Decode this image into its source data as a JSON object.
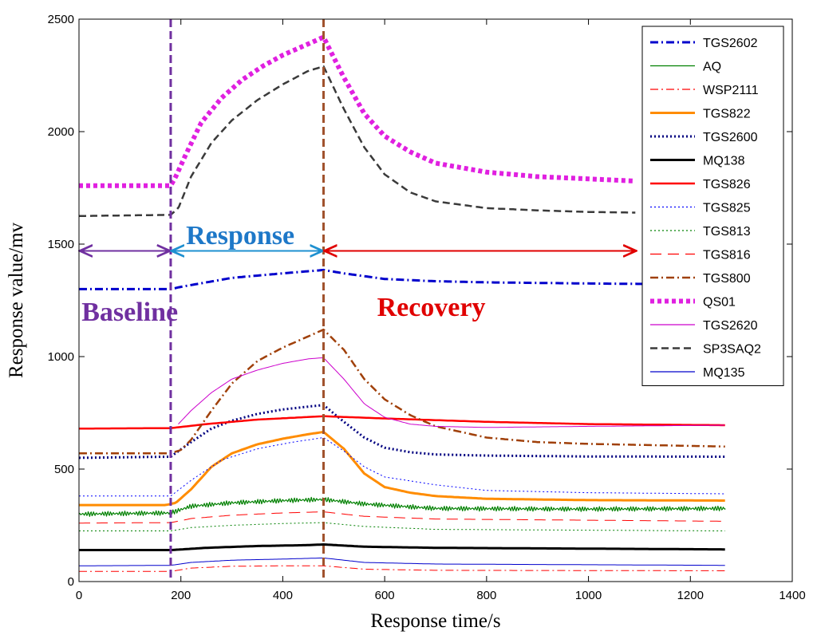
{
  "chart_data": {
    "type": "line",
    "title": "",
    "xlabel": "Response time/s",
    "ylabel": "Response value/mv",
    "xlim": [
      0,
      1400
    ],
    "ylim": [
      0,
      2500
    ],
    "xticks": [
      0,
      200,
      400,
      600,
      800,
      1000,
      1200,
      1400
    ],
    "yticks": [
      0,
      500,
      1000,
      1500,
      2000,
      2500
    ],
    "grid": false,
    "legend_position": "top-right",
    "series": [
      {
        "name": "TGS2602",
        "color": "#0000cc",
        "style": "dashdot",
        "width": 3,
        "t_end": 1270,
        "points": [
          [
            0,
            1300
          ],
          [
            180,
            1300
          ],
          [
            200,
            1310
          ],
          [
            250,
            1330
          ],
          [
            300,
            1350
          ],
          [
            400,
            1370
          ],
          [
            480,
            1385
          ],
          [
            520,
            1370
          ],
          [
            600,
            1345
          ],
          [
            700,
            1335
          ],
          [
            800,
            1330
          ],
          [
            1000,
            1325
          ],
          [
            1270,
            1320
          ]
        ]
      },
      {
        "name": "AQ",
        "color": "#008000",
        "style": "solid",
        "width": 1.2,
        "t_end": 1270,
        "noise": 22,
        "noise_step": 1.5,
        "points": [
          [
            0,
            300
          ],
          [
            180,
            305
          ],
          [
            220,
            335
          ],
          [
            300,
            350
          ],
          [
            400,
            360
          ],
          [
            480,
            365
          ],
          [
            560,
            345
          ],
          [
            700,
            325
          ],
          [
            1000,
            322
          ],
          [
            1270,
            325
          ]
        ]
      },
      {
        "name": "WSP2111",
        "color": "#ff0000",
        "style": "dashdot",
        "width": 1,
        "t_end": 1270,
        "points": [
          [
            0,
            45
          ],
          [
            180,
            45
          ],
          [
            220,
            60
          ],
          [
            300,
            68
          ],
          [
            400,
            70
          ],
          [
            480,
            70
          ],
          [
            560,
            55
          ],
          [
            700,
            50
          ],
          [
            1270,
            48
          ]
        ]
      },
      {
        "name": "TGS822",
        "color": "#ff8c00",
        "style": "solid",
        "width": 3,
        "t_end": 1270,
        "points": [
          [
            0,
            340
          ],
          [
            170,
            340
          ],
          [
            190,
            350
          ],
          [
            220,
            410
          ],
          [
            260,
            510
          ],
          [
            300,
            570
          ],
          [
            350,
            610
          ],
          [
            400,
            635
          ],
          [
            450,
            655
          ],
          [
            480,
            665
          ],
          [
            520,
            590
          ],
          [
            560,
            480
          ],
          [
            600,
            420
          ],
          [
            650,
            395
          ],
          [
            700,
            380
          ],
          [
            800,
            368
          ],
          [
            1000,
            362
          ],
          [
            1270,
            360
          ]
        ]
      },
      {
        "name": "TGS2600",
        "color": "#000080",
        "style": "dotted",
        "width": 3,
        "t_end": 1270,
        "points": [
          [
            0,
            550
          ],
          [
            180,
            555
          ],
          [
            220,
            620
          ],
          [
            260,
            680
          ],
          [
            300,
            715
          ],
          [
            350,
            745
          ],
          [
            400,
            765
          ],
          [
            480,
            785
          ],
          [
            520,
            710
          ],
          [
            560,
            640
          ],
          [
            600,
            595
          ],
          [
            650,
            575
          ],
          [
            700,
            565
          ],
          [
            800,
            560
          ],
          [
            1000,
            556
          ],
          [
            1270,
            555
          ]
        ]
      },
      {
        "name": "MQ138",
        "color": "#000000",
        "style": "solid",
        "width": 3,
        "t_end": 1270,
        "points": [
          [
            0,
            140
          ],
          [
            180,
            140
          ],
          [
            250,
            150
          ],
          [
            350,
            158
          ],
          [
            450,
            162
          ],
          [
            480,
            165
          ],
          [
            560,
            155
          ],
          [
            700,
            150
          ],
          [
            1270,
            143
          ]
        ]
      },
      {
        "name": "TGS826",
        "color": "#ff0000",
        "style": "solid",
        "width": 2.5,
        "t_end": 1270,
        "points": [
          [
            0,
            680
          ],
          [
            180,
            682
          ],
          [
            250,
            700
          ],
          [
            350,
            720
          ],
          [
            480,
            735
          ],
          [
            600,
            725
          ],
          [
            800,
            710
          ],
          [
            1000,
            700
          ],
          [
            1270,
            695
          ]
        ]
      },
      {
        "name": "TGS825",
        "color": "#0000ff",
        "style": "dotted",
        "width": 1,
        "t_end": 1270,
        "points": [
          [
            0,
            380
          ],
          [
            180,
            380
          ],
          [
            220,
            450
          ],
          [
            280,
            540
          ],
          [
            350,
            590
          ],
          [
            420,
            620
          ],
          [
            480,
            640
          ],
          [
            520,
            580
          ],
          [
            560,
            510
          ],
          [
            600,
            465
          ],
          [
            700,
            430
          ],
          [
            800,
            405
          ],
          [
            1000,
            395
          ],
          [
            1270,
            390
          ]
        ]
      },
      {
        "name": "TGS813",
        "color": "#008000",
        "style": "dotted",
        "width": 1,
        "t_end": 1270,
        "points": [
          [
            0,
            225
          ],
          [
            180,
            225
          ],
          [
            220,
            240
          ],
          [
            300,
            250
          ],
          [
            400,
            258
          ],
          [
            480,
            262
          ],
          [
            560,
            245
          ],
          [
            700,
            232
          ],
          [
            1270,
            225
          ]
        ]
      },
      {
        "name": "TGS816",
        "color": "#ff0000",
        "style": "longdash",
        "width": 1,
        "t_end": 1270,
        "points": [
          [
            0,
            260
          ],
          [
            180,
            262
          ],
          [
            220,
            280
          ],
          [
            300,
            295
          ],
          [
            400,
            305
          ],
          [
            480,
            310
          ],
          [
            560,
            290
          ],
          [
            700,
            278
          ],
          [
            1270,
            268
          ]
        ]
      },
      {
        "name": "TGS800",
        "color": "#a0400a",
        "style": "dashdot",
        "width": 2.5,
        "t_end": 1270,
        "points": [
          [
            0,
            570
          ],
          [
            180,
            570
          ],
          [
            200,
            585
          ],
          [
            220,
            630
          ],
          [
            260,
            760
          ],
          [
            300,
            880
          ],
          [
            350,
            980
          ],
          [
            400,
            1040
          ],
          [
            450,
            1090
          ],
          [
            480,
            1120
          ],
          [
            520,
            1030
          ],
          [
            560,
            900
          ],
          [
            600,
            810
          ],
          [
            650,
            740
          ],
          [
            700,
            690
          ],
          [
            800,
            640
          ],
          [
            900,
            620
          ],
          [
            1000,
            612
          ],
          [
            1270,
            600
          ]
        ]
      },
      {
        "name": "QS01",
        "color": "#e020e0",
        "style": "dotted",
        "width": 6,
        "t_end": 1095,
        "points": [
          [
            0,
            1760
          ],
          [
            180,
            1760
          ],
          [
            190,
            1800
          ],
          [
            210,
            1900
          ],
          [
            240,
            2040
          ],
          [
            280,
            2150
          ],
          [
            320,
            2230
          ],
          [
            360,
            2290
          ],
          [
            400,
            2340
          ],
          [
            450,
            2390
          ],
          [
            480,
            2420
          ],
          [
            520,
            2240
          ],
          [
            560,
            2080
          ],
          [
            600,
            1980
          ],
          [
            650,
            1910
          ],
          [
            700,
            1860
          ],
          [
            800,
            1820
          ],
          [
            900,
            1800
          ],
          [
            1000,
            1790
          ],
          [
            1095,
            1780
          ]
        ]
      },
      {
        "name": "TGS2620",
        "color": "#cc00cc",
        "style": "solid",
        "width": 1,
        "t_end": 1270,
        "t_start": 195,
        "points": [
          [
            195,
            700
          ],
          [
            220,
            760
          ],
          [
            260,
            840
          ],
          [
            300,
            900
          ],
          [
            350,
            940
          ],
          [
            400,
            970
          ],
          [
            450,
            990
          ],
          [
            480,
            995
          ],
          [
            520,
            900
          ],
          [
            560,
            790
          ],
          [
            600,
            730
          ],
          [
            650,
            700
          ],
          [
            700,
            690
          ],
          [
            800,
            685
          ],
          [
            1000,
            690
          ],
          [
            1270,
            695
          ]
        ]
      },
      {
        "name": "SP3SAQ2",
        "color": "#3a3a3a",
        "style": "dashed",
        "width": 2.5,
        "t_end": 1095,
        "points": [
          [
            0,
            1625
          ],
          [
            180,
            1630
          ],
          [
            195,
            1660
          ],
          [
            220,
            1800
          ],
          [
            260,
            1950
          ],
          [
            300,
            2050
          ],
          [
            350,
            2140
          ],
          [
            400,
            2210
          ],
          [
            450,
            2270
          ],
          [
            480,
            2290
          ],
          [
            520,
            2100
          ],
          [
            560,
            1930
          ],
          [
            600,
            1810
          ],
          [
            650,
            1730
          ],
          [
            700,
            1690
          ],
          [
            800,
            1660
          ],
          [
            900,
            1650
          ],
          [
            1000,
            1643
          ],
          [
            1095,
            1640
          ]
        ]
      },
      {
        "name": "MQ135",
        "color": "#0000cc",
        "style": "solid",
        "width": 1,
        "t_end": 1270,
        "points": [
          [
            0,
            70
          ],
          [
            180,
            72
          ],
          [
            220,
            85
          ],
          [
            300,
            95
          ],
          [
            400,
            100
          ],
          [
            480,
            105
          ],
          [
            560,
            85
          ],
          [
            700,
            78
          ],
          [
            1270,
            72
          ]
        ]
      }
    ],
    "phase_lines": [
      {
        "x": 180,
        "color": "#7030a0"
      },
      {
        "x": 480,
        "color": "#a0522d"
      }
    ],
    "phase_arrows": [
      {
        "from": 0,
        "to": 180,
        "y": 1470,
        "color": "#7030a0"
      },
      {
        "from": 180,
        "to": 480,
        "y": 1470,
        "color": "#1e90d0"
      },
      {
        "from": 480,
        "to": 1095,
        "y": 1470,
        "color": "#e00000"
      }
    ],
    "annotations": [
      {
        "text": "Baseline",
        "x": 5,
        "y": 1160,
        "color": "#7030a0"
      },
      {
        "text": "Response",
        "x": 210,
        "y": 1500,
        "color": "#1e78c8"
      },
      {
        "text": "Recovery",
        "x": 585,
        "y": 1180,
        "color": "#e00000"
      }
    ]
  }
}
